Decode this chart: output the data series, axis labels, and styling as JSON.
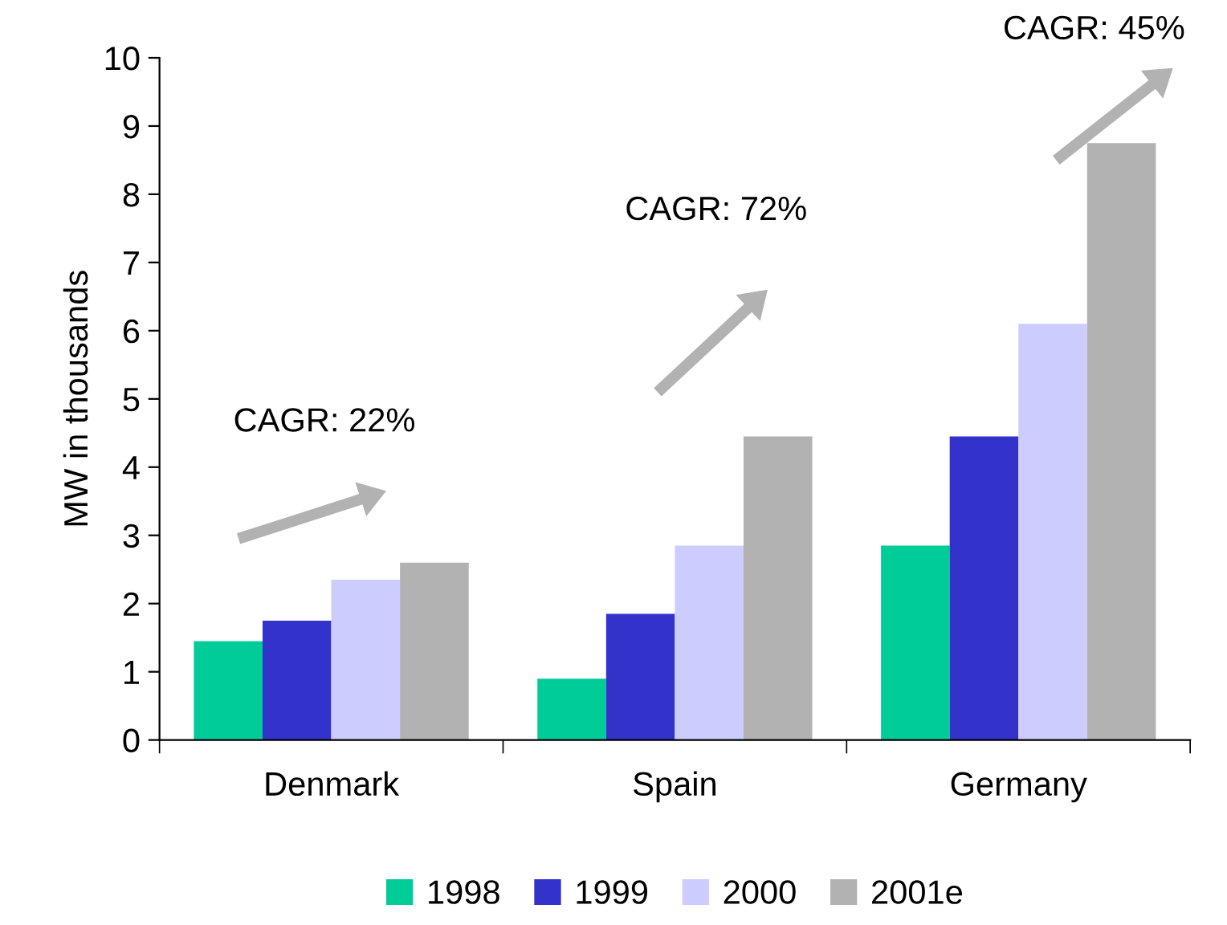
{
  "chart_data": {
    "type": "bar",
    "ylabel": "MW in thousands",
    "categories": [
      "Denmark",
      "Spain",
      "Germany"
    ],
    "series": [
      {
        "name": "1998",
        "color": "#00cc99",
        "values": [
          1.45,
          0.9,
          2.85
        ]
      },
      {
        "name": "1999",
        "color": "#3333cc",
        "values": [
          1.75,
          1.85,
          4.45
        ]
      },
      {
        "name": "2000",
        "color": "#ccccff",
        "values": [
          2.35,
          2.85,
          6.1
        ]
      },
      {
        "name": "2001e",
        "color": "#b2b2b2",
        "values": [
          2.6,
          4.45,
          8.75
        ]
      }
    ],
    "ylim": [
      0,
      10
    ],
    "yticks": [
      0,
      1,
      2,
      3,
      4,
      5,
      6,
      7,
      8,
      9,
      10
    ],
    "annotations": [
      "CAGR: 22%",
      "CAGR: 72%",
      "CAGR: 45%"
    ],
    "grid": false,
    "legend": "bottom"
  }
}
